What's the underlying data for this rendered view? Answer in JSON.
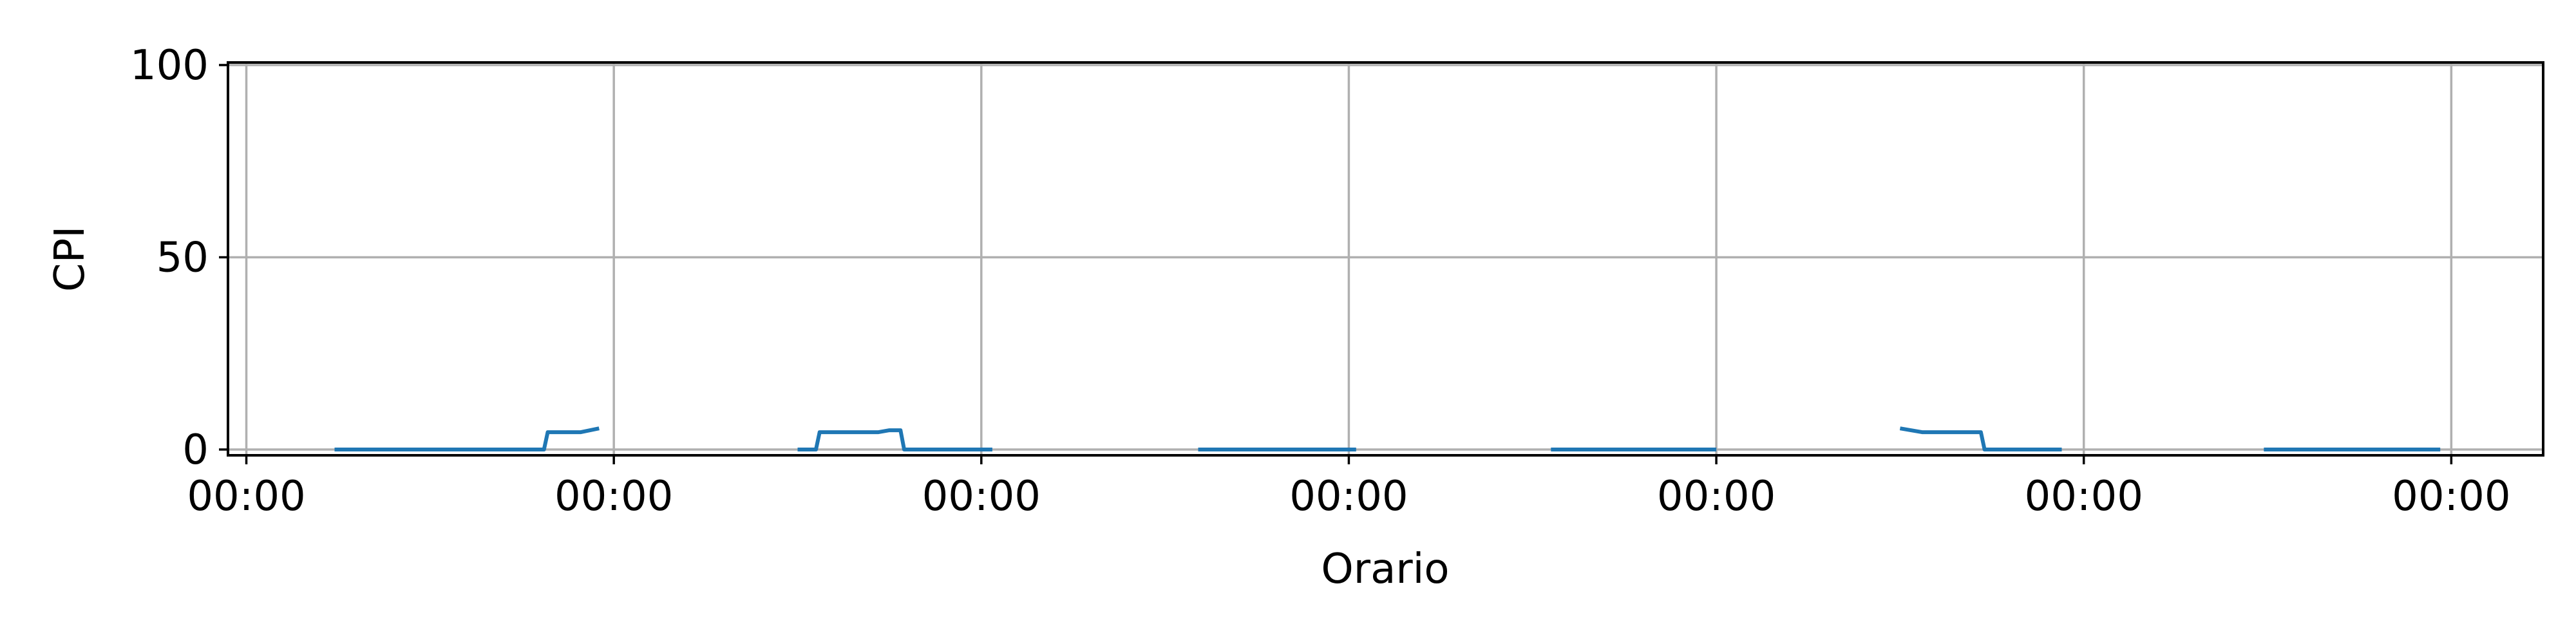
{
  "chart_data": {
    "type": "line",
    "title": "",
    "xlabel": "Orario",
    "ylabel": "CPI",
    "ylim": [
      0,
      100
    ],
    "yticks": [
      0,
      50,
      100
    ],
    "xlim": [
      -0.05,
      6.25
    ],
    "xticks": [
      0,
      1,
      2,
      3,
      4,
      5,
      6
    ],
    "xtick_labels": [
      "00:00",
      "00:00",
      "00:00",
      "00:00",
      "00:00",
      "00:00",
      "00:00"
    ],
    "grid": true,
    "series": [
      {
        "name": "",
        "color": "#1f77b4",
        "segments": [
          [
            [
              0.24,
              0
            ],
            [
              0.81,
              0
            ],
            [
              0.82,
              4.5
            ],
            [
              0.91,
              4.5
            ],
            [
              0.96,
              5.5
            ]
          ],
          [
            [
              1.5,
              0
            ],
            [
              1.55,
              0
            ],
            [
              1.56,
              4.5
            ],
            [
              1.72,
              4.5
            ],
            [
              1.75,
              5.0
            ],
            [
              1.78,
              5.0
            ],
            [
              1.79,
              0
            ],
            [
              2.03,
              0
            ]
          ],
          [
            [
              2.59,
              0
            ],
            [
              3.02,
              0
            ]
          ],
          [
            [
              3.55,
              0
            ],
            [
              4.0,
              0
            ]
          ],
          [
            [
              4.5,
              5.5
            ],
            [
              4.56,
              4.5
            ],
            [
              4.72,
              4.5
            ],
            [
              4.73,
              0
            ],
            [
              4.94,
              0
            ]
          ],
          [
            [
              5.49,
              0
            ],
            [
              5.97,
              0
            ]
          ]
        ]
      }
    ]
  }
}
